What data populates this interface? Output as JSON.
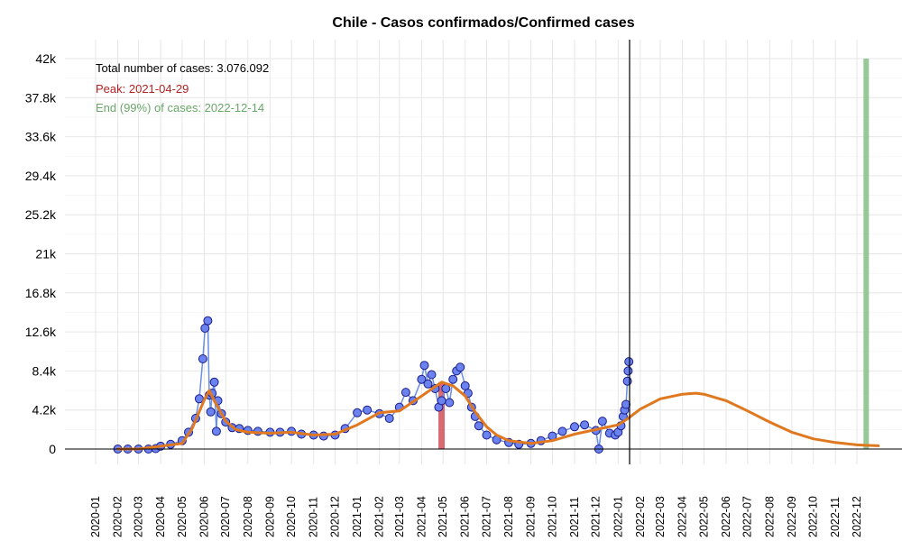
{
  "chart_data": {
    "type": "scatter",
    "title": "Chile - Casos confirmados/Confirmed cases",
    "xlabel": "",
    "ylabel": "",
    "xlim": [
      "2020-01-01",
      "2022-12-31"
    ],
    "ylim": [
      0,
      42000
    ],
    "yticks": [
      0,
      4200,
      8400,
      12600,
      16800,
      21000,
      25200,
      29400,
      33600,
      37800,
      42000
    ],
    "ytick_labels": [
      "0",
      "4.2k",
      "8.4k",
      "12.6k",
      "16.8k",
      "21k",
      "25.2k",
      "29.4k",
      "33.6k",
      "37.8k",
      "42k"
    ],
    "xtick_labels": [
      "2020-01",
      "2020-02",
      "2020-03",
      "2020-04",
      "2020-05",
      "2020-06",
      "2020-07",
      "2020-08",
      "2020-09",
      "2020-10",
      "2020-11",
      "2020-12",
      "2021-01",
      "2021-02",
      "2021-03",
      "2021-04",
      "2021-05",
      "2021-06",
      "2021-07",
      "2021-08",
      "2021-09",
      "2021-10",
      "2021-11",
      "2021-12",
      "2022-01",
      "2022-02",
      "2022-03",
      "2022-04",
      "2022-05",
      "2022-06",
      "2022-07",
      "2022-08",
      "2022-09",
      "2022-10",
      "2022-11",
      "2022-12"
    ],
    "grid": true,
    "annotations": {
      "total": "Total number of cases: 3.076.092",
      "peak": "Peak: 2021-04-29",
      "end": "End (99%) of cases: 2022-12-14"
    },
    "markers": {
      "today": "2022-01-17",
      "peak": "2021-04-29",
      "end": "2022-12-14"
    },
    "colors": {
      "points_fill": "#6a83ee",
      "points_stroke": "#1c1c8c",
      "observed_line": "#6a8fe6",
      "fit_line": "#e07820",
      "peak_bar": "#d0505a",
      "end_bar": "#8cc38c",
      "peak_text": "#b22222",
      "end_text": "#6aa86a"
    },
    "observed": {
      "x": [
        "2020-02-01",
        "2020-02-15",
        "2020-03-01",
        "2020-03-15",
        "2020-03-25",
        "2020-04-01",
        "2020-04-15",
        "2020-05-01",
        "2020-05-10",
        "2020-05-20",
        "2020-05-25",
        "2020-05-30",
        "2020-06-02",
        "2020-06-06",
        "2020-06-08",
        "2020-06-10",
        "2020-06-12",
        "2020-06-15",
        "2020-06-18",
        "2020-06-20",
        "2020-06-25",
        "2020-07-01",
        "2020-07-10",
        "2020-07-20",
        "2020-08-01",
        "2020-08-15",
        "2020-09-01",
        "2020-09-15",
        "2020-10-01",
        "2020-10-15",
        "2020-11-01",
        "2020-11-15",
        "2020-12-01",
        "2020-12-15",
        "2021-01-01",
        "2021-01-15",
        "2021-02-01",
        "2021-02-15",
        "2021-03-01",
        "2021-03-10",
        "2021-03-20",
        "2021-04-01",
        "2021-04-05",
        "2021-04-10",
        "2021-04-15",
        "2021-04-20",
        "2021-04-25",
        "2021-04-29",
        "2021-05-05",
        "2021-05-10",
        "2021-05-15",
        "2021-05-20",
        "2021-05-25",
        "2021-06-01",
        "2021-06-05",
        "2021-06-10",
        "2021-06-15",
        "2021-06-20",
        "2021-07-01",
        "2021-07-15",
        "2021-08-01",
        "2021-08-15",
        "2021-09-01",
        "2021-09-15",
        "2021-10-01",
        "2021-10-15",
        "2021-11-01",
        "2021-11-15",
        "2021-12-01",
        "2021-12-05",
        "2021-12-10",
        "2021-12-20",
        "2021-12-28",
        "2022-01-01",
        "2022-01-05",
        "2022-01-08",
        "2022-01-10",
        "2022-01-12",
        "2022-01-14",
        "2022-01-15",
        "2022-01-16"
      ],
      "y": [
        0,
        0,
        0,
        0,
        50,
        300,
        500,
        900,
        1800,
        3300,
        5400,
        9700,
        13000,
        13800,
        5800,
        4000,
        6000,
        7200,
        1900,
        5200,
        3800,
        2900,
        2300,
        2200,
        2000,
        1900,
        1800,
        1800,
        1900,
        1600,
        1500,
        1400,
        1500,
        2200,
        3900,
        4200,
        3800,
        3300,
        4500,
        6100,
        5200,
        7500,
        9000,
        7000,
        8000,
        6500,
        4500,
        5200,
        6500,
        5000,
        7500,
        8400,
        8800,
        6800,
        6000,
        4500,
        3500,
        2500,
        1500,
        1000,
        700,
        500,
        600,
        900,
        1400,
        1900,
        2400,
        2600,
        2000,
        0,
        3000,
        1700,
        1500,
        1800,
        2500,
        3500,
        4200,
        4800,
        7300,
        8400,
        9400
      ]
    },
    "fit": {
      "x": [
        "2020-02-01",
        "2020-03-01",
        "2020-04-01",
        "2020-05-01",
        "2020-05-15",
        "2020-06-01",
        "2020-06-08",
        "2020-06-15",
        "2020-07-01",
        "2020-07-15",
        "2020-08-01",
        "2020-09-01",
        "2020-10-01",
        "2020-11-01",
        "2020-12-01",
        "2021-01-01",
        "2021-02-01",
        "2021-03-01",
        "2021-04-01",
        "2021-04-29",
        "2021-05-15",
        "2021-06-01",
        "2021-06-15",
        "2021-07-01",
        "2021-07-15",
        "2021-08-01",
        "2021-09-01",
        "2021-10-01",
        "2021-11-01",
        "2021-12-01",
        "2022-01-01",
        "2022-01-15",
        "2022-02-01",
        "2022-03-01",
        "2022-04-01",
        "2022-04-20",
        "2022-05-01",
        "2022-06-01",
        "2022-07-01",
        "2022-08-01",
        "2022-09-01",
        "2022-10-01",
        "2022-11-01",
        "2022-12-01",
        "2022-12-14",
        "2022-12-31"
      ],
      "y": [
        0,
        0,
        300,
        600,
        2200,
        5300,
        6300,
        5200,
        3000,
        2100,
        1800,
        1700,
        1800,
        1500,
        1600,
        2600,
        3900,
        4100,
        5700,
        7200,
        6800,
        5700,
        4000,
        2400,
        1500,
        900,
        600,
        900,
        1600,
        2100,
        2600,
        3300,
        4300,
        5400,
        5900,
        6000,
        5900,
        5200,
        4100,
        2900,
        1800,
        1100,
        700,
        450,
        400,
        350
      ]
    }
  }
}
